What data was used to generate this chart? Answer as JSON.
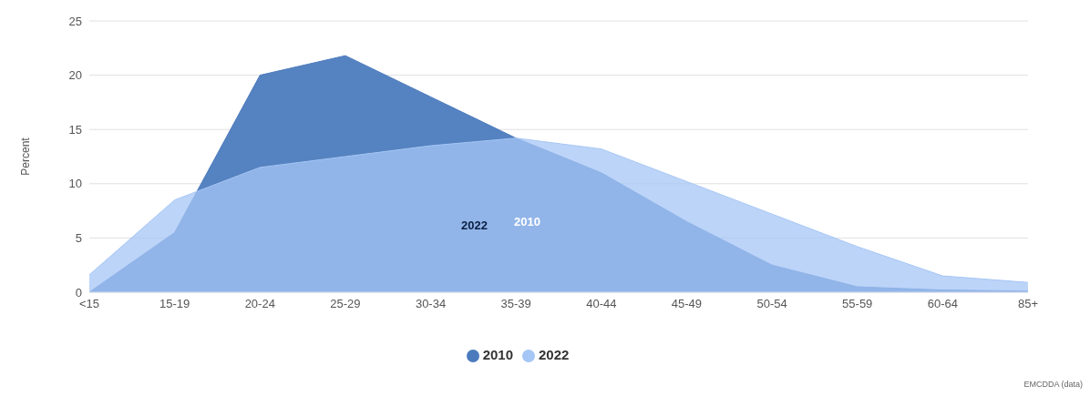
{
  "chart_data": {
    "type": "area",
    "ylabel": "Percent",
    "categories": [
      "<15",
      "15-19",
      "20-24",
      "25-29",
      "30-34",
      "35-39",
      "40-44",
      "45-49",
      "50-54",
      "55-59",
      "60-64",
      "85+"
    ],
    "series": [
      {
        "name": "2010",
        "color": "#4c7bbd",
        "values": [
          0,
          5.5,
          20,
          21.8,
          18,
          14.2,
          11,
          6.5,
          2.5,
          0.5,
          0.2,
          0.1
        ]
      },
      {
        "name": "2022",
        "color": "#a6c6f5",
        "values": [
          1.6,
          8.5,
          11.5,
          12.5,
          13.5,
          14.2,
          13.2,
          10.2,
          7.2,
          4.2,
          1.5,
          0.9
        ]
      }
    ],
    "ylim": [
      0,
      25
    ],
    "yticks": [
      0,
      5,
      10,
      15,
      20,
      25
    ],
    "grid": "y",
    "legend": "bottom",
    "annotations": [
      "2022",
      "2010",
      "EMCDDA (data)"
    ]
  }
}
